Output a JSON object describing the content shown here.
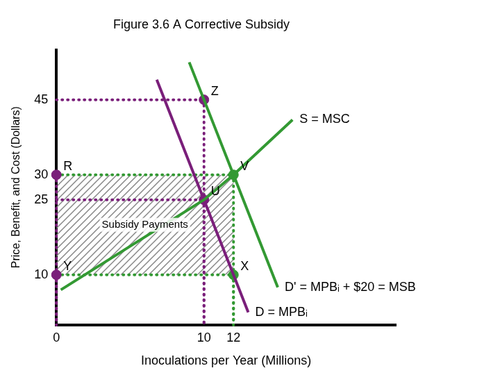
{
  "chart_data": {
    "type": "line",
    "title": "Figure 3.6 A Corrective Subsidy",
    "x_label": "Inoculations per Year (Millions)",
    "y_label": "Price, Benefit, and Cost (Dollars)",
    "xlim": [
      0,
      23
    ],
    "ylim": [
      0,
      55
    ],
    "xticks": [
      0,
      10,
      12
    ],
    "yticks": [
      10,
      25,
      30,
      45
    ],
    "grid": false,
    "series": [
      {
        "name": "S = MSC",
        "color": "#339933",
        "x": [
          0.3,
          10,
          12,
          16
        ],
        "values": [
          7,
          25,
          30,
          41
        ]
      },
      {
        "name": "D = MPBᵢ",
        "color": "#7a1f7a",
        "x": [
          6.8,
          10,
          12,
          13
        ],
        "values": [
          49,
          25,
          10,
          2.5
        ]
      },
      {
        "name": "D' = MPBᵢ + $20 = MSB",
        "color": "#339933",
        "x": [
          9,
          10,
          12,
          15
        ],
        "values": [
          52.5,
          45,
          30,
          7.5
        ]
      }
    ],
    "points": [
      {
        "label": "Z",
        "x": 10,
        "y": 45,
        "color": "#7a1f7a"
      },
      {
        "label": "R",
        "x": 0,
        "y": 30,
        "color": "#7a1f7a"
      },
      {
        "label": "V",
        "x": 12,
        "y": 30,
        "color": "#339933"
      },
      {
        "label": "U",
        "x": 10,
        "y": 25,
        "color": "#7a1f7a"
      },
      {
        "label": "X",
        "x": 12,
        "y": 10,
        "color": "#339933"
      },
      {
        "label": "Y",
        "x": 0,
        "y": 10,
        "color": "#7a1f7a"
      }
    ],
    "subsidy_region": {
      "label": "Subsidy Payments",
      "x": [
        0,
        12
      ],
      "y": [
        10,
        30
      ]
    }
  }
}
